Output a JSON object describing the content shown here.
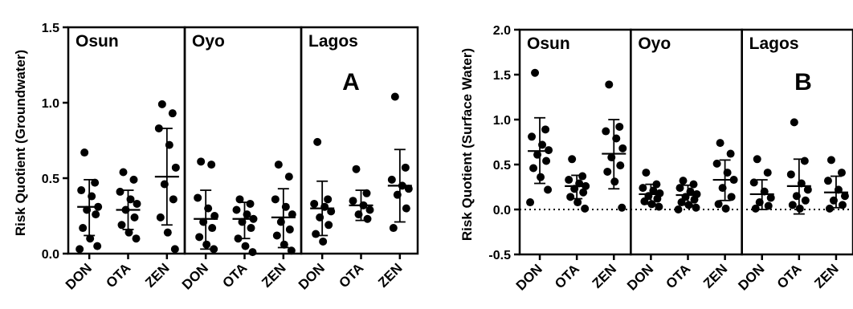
{
  "chart_data": [
    {
      "type": "scatter",
      "panel_letter": "A",
      "ylabel": "Risk Quotient (Groundwater)",
      "ylim": [
        0,
        1.5
      ],
      "yticks": [
        "0.0",
        "0.5",
        "1.0",
        "1.5"
      ],
      "show_zero_line": false,
      "groups": [
        {
          "region": "Osun",
          "categories": [
            {
              "name": "DON",
              "mean": 0.31,
              "sd_low": 0.12,
              "sd_high": 0.49,
              "points": [
                0.67,
                0.47,
                0.42,
                0.38,
                0.31,
                0.29,
                0.26,
                0.17,
                0.1,
                0.05,
                0.03
              ]
            },
            {
              "name": "OTA",
              "mean": 0.29,
              "sd_low": 0.16,
              "sd_high": 0.42,
              "points": [
                0.54,
                0.49,
                0.41,
                0.36,
                0.33,
                0.29,
                0.24,
                0.19,
                0.14,
                0.1
              ]
            },
            {
              "name": "ZEN",
              "mean": 0.51,
              "sd_low": 0.19,
              "sd_high": 0.83,
              "points": [
                0.99,
                0.93,
                0.83,
                0.72,
                0.57,
                0.46,
                0.36,
                0.24,
                0.14,
                0.03
              ]
            }
          ]
        },
        {
          "region": "Oyo",
          "categories": [
            {
              "name": "DON",
              "mean": 0.23,
              "sd_low": 0.03,
              "sd_high": 0.42,
              "points": [
                0.61,
                0.59,
                0.37,
                0.3,
                0.25,
                0.21,
                0.17,
                0.11,
                0.06,
                0.03
              ]
            },
            {
              "name": "OTA",
              "mean": 0.23,
              "sd_low": 0.1,
              "sd_high": 0.34,
              "points": [
                0.36,
                0.33,
                0.29,
                0.26,
                0.23,
                0.21,
                0.17,
                0.1,
                0.05,
                0.01
              ]
            },
            {
              "name": "ZEN",
              "mean": 0.24,
              "sd_low": 0.04,
              "sd_high": 0.43,
              "points": [
                0.59,
                0.51,
                0.36,
                0.31,
                0.26,
                0.21,
                0.16,
                0.12,
                0.06,
                0.02
              ]
            }
          ]
        },
        {
          "region": "Lagos",
          "categories": [
            {
              "name": "DON",
              "mean": 0.3,
              "sd_low": 0.12,
              "sd_high": 0.48,
              "points": [
                0.74,
                0.36,
                0.33,
                0.31,
                0.28,
                0.24,
                0.19,
                0.13,
                0.08
              ]
            },
            {
              "name": "OTA",
              "mean": 0.32,
              "sd_low": 0.22,
              "sd_high": 0.42,
              "points": [
                0.56,
                0.4,
                0.35,
                0.32,
                0.29,
                0.26,
                0.23
              ]
            },
            {
              "name": "ZEN",
              "mean": 0.45,
              "sd_low": 0.21,
              "sd_high": 0.69,
              "points": [
                1.04,
                0.57,
                0.49,
                0.45,
                0.43,
                0.39,
                0.3,
                0.17
              ]
            }
          ]
        }
      ]
    },
    {
      "type": "scatter",
      "panel_letter": "B",
      "ylabel": "Risk Quotient (Surface Water)",
      "ylim": [
        -0.5,
        2.0
      ],
      "yticks": [
        "-0.5",
        "0.0",
        "0.5",
        "1.0",
        "1.5",
        "2.0"
      ],
      "show_zero_line": true,
      "groups": [
        {
          "region": "Osun",
          "categories": [
            {
              "name": "DON",
              "mean": 0.65,
              "sd_low": 0.29,
              "sd_high": 1.02,
              "points": [
                1.52,
                0.89,
                0.81,
                0.72,
                0.66,
                0.61,
                0.54,
                0.46,
                0.36,
                0.22,
                0.08
              ]
            },
            {
              "name": "OTA",
              "mean": 0.26,
              "sd_low": 0.12,
              "sd_high": 0.38,
              "points": [
                0.56,
                0.37,
                0.33,
                0.29,
                0.26,
                0.23,
                0.19,
                0.14,
                0.08,
                0.01
              ]
            },
            {
              "name": "ZEN",
              "mean": 0.62,
              "sd_low": 0.23,
              "sd_high": 1.0,
              "points": [
                1.39,
                0.92,
                0.87,
                0.79,
                0.68,
                0.58,
                0.49,
                0.42,
                0.31,
                0.02
              ]
            }
          ]
        },
        {
          "region": "Oyo",
          "categories": [
            {
              "name": "DON",
              "mean": 0.17,
              "sd_low": 0.06,
              "sd_high": 0.28,
              "points": [
                0.41,
                0.28,
                0.24,
                0.21,
                0.18,
                0.15,
                0.12,
                0.09,
                0.06,
                0.03
              ]
            },
            {
              "name": "OTA",
              "mean": 0.16,
              "sd_low": 0.05,
              "sd_high": 0.27,
              "points": [
                0.32,
                0.28,
                0.24,
                0.2,
                0.17,
                0.14,
                0.11,
                0.08,
                0.05,
                0.02,
                0.0
              ]
            },
            {
              "name": "ZEN",
              "mean": 0.33,
              "sd_low": 0.1,
              "sd_high": 0.55,
              "points": [
                0.74,
                0.62,
                0.51,
                0.41,
                0.33,
                0.24,
                0.14,
                0.06,
                0.01
              ]
            }
          ]
        },
        {
          "region": "Lagos",
          "categories": [
            {
              "name": "DON",
              "mean": 0.17,
              "sd_low": 0.0,
              "sd_high": 0.33,
              "points": [
                0.56,
                0.41,
                0.3,
                0.2,
                0.13,
                0.08,
                0.04,
                0.01
              ]
            },
            {
              "name": "OTA",
              "mean": 0.26,
              "sd_low": -0.05,
              "sd_high": 0.56,
              "points": [
                0.97,
                0.54,
                0.39,
                0.29,
                0.22,
                0.15,
                0.1,
                0.05,
                0.01
              ]
            },
            {
              "name": "ZEN",
              "mean": 0.19,
              "sd_low": 0.02,
              "sd_high": 0.37,
              "points": [
                0.55,
                0.41,
                0.32,
                0.22,
                0.15,
                0.1,
                0.05,
                0.01
              ]
            }
          ]
        }
      ]
    }
  ]
}
